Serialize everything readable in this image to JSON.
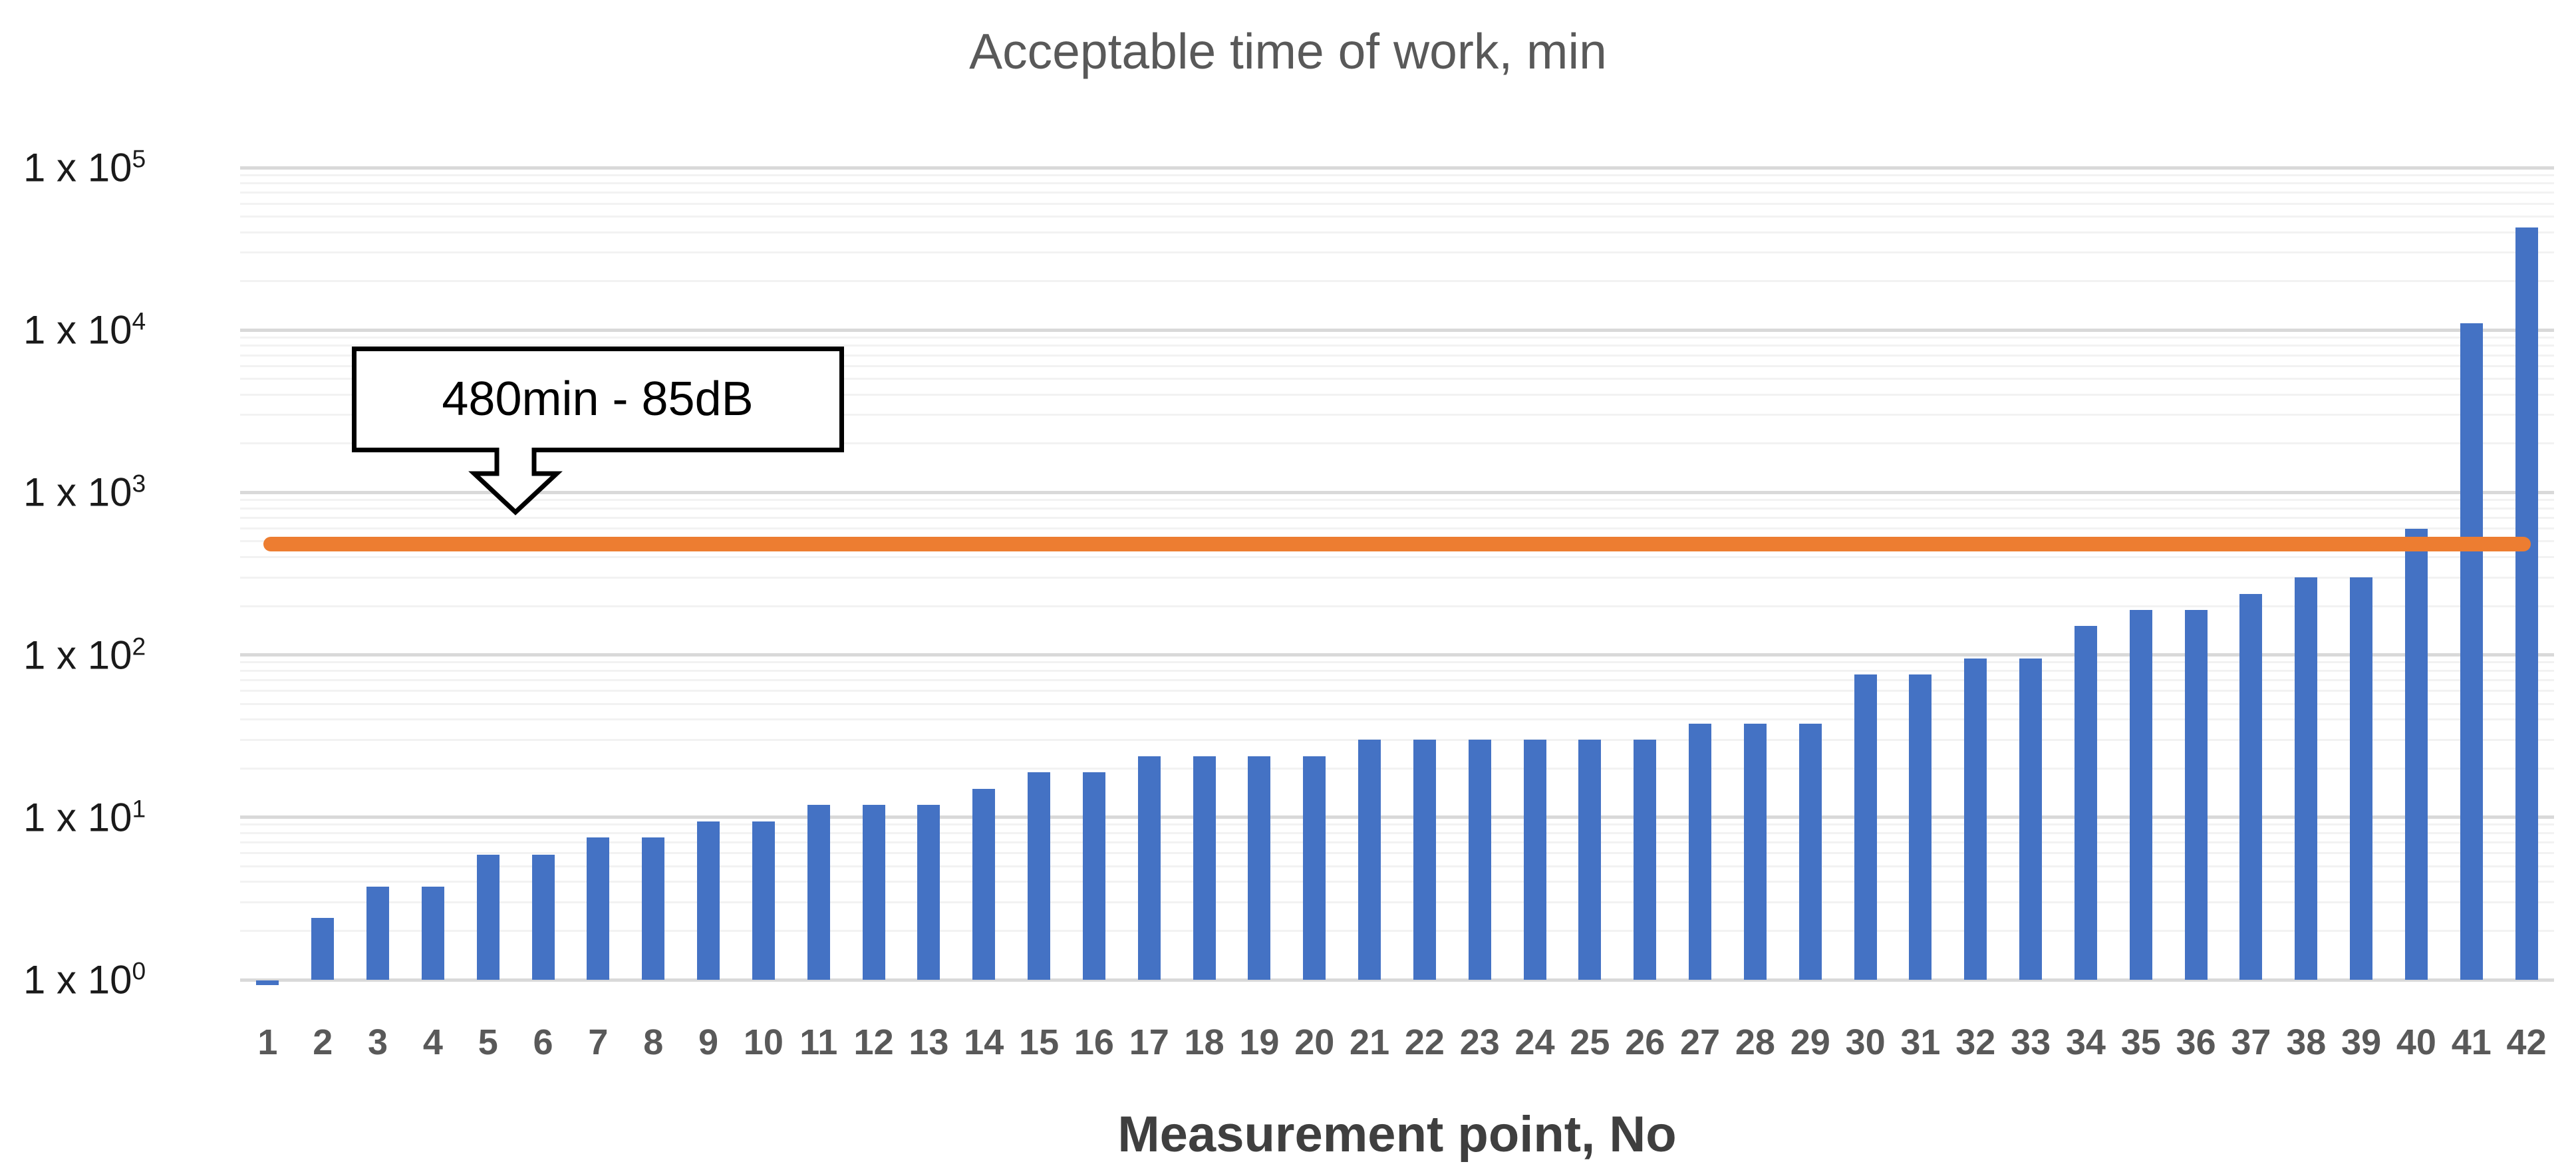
{
  "chart_data": {
    "type": "bar",
    "title": "Acceptable time of work, min",
    "xlabel": "Measurement point, No",
    "ylabel": "",
    "y_scale": "log10",
    "ylim": [
      1,
      100000
    ],
    "y_ticks": [
      {
        "base": "1 x 10",
        "exp": "0",
        "value": 1
      },
      {
        "base": "1 x 10",
        "exp": "1",
        "value": 10
      },
      {
        "base": "1 x 10",
        "exp": "2",
        "value": 100
      },
      {
        "base": "1 x 10",
        "exp": "3",
        "value": 1000
      },
      {
        "base": "1 x 10",
        "exp": "4",
        "value": 10000
      },
      {
        "base": "1 x 10",
        "exp": "5",
        "value": 100000
      }
    ],
    "categories": [
      1,
      2,
      3,
      4,
      5,
      6,
      7,
      8,
      9,
      10,
      11,
      12,
      13,
      14,
      15,
      16,
      17,
      18,
      19,
      20,
      21,
      22,
      23,
      24,
      25,
      26,
      27,
      28,
      29,
      30,
      31,
      32,
      33,
      34,
      35,
      36,
      37,
      38,
      39,
      40,
      41,
      42
    ],
    "series": [
      {
        "name": "Acceptable time of work, min",
        "type": "bar",
        "color": "#4472C4",
        "values": [
          0.94,
          2.4,
          3.75,
          3.75,
          5.9,
          5.9,
          7.5,
          7.5,
          9.4,
          9.4,
          11.9,
          11.9,
          11.9,
          15,
          18.9,
          18.9,
          23.8,
          23.8,
          23.8,
          23.8,
          30,
          30,
          30,
          30,
          30,
          30,
          37.8,
          37.8,
          37.8,
          75.6,
          75.6,
          95,
          95,
          151,
          189,
          189,
          238,
          300,
          300,
          600,
          11000,
          43000
        ]
      },
      {
        "name": "480 min limit at 85 dB",
        "type": "line",
        "color": "#ED7D31",
        "constant_value": 480
      }
    ],
    "annotation": {
      "text": "480min - 85dB"
    },
    "grid": {
      "major_on": true,
      "minor_on": true,
      "minor_steps": [
        2,
        3,
        4,
        5,
        6,
        7,
        8,
        9
      ]
    },
    "legend_position": "none"
  },
  "colors": {
    "bar": "#4472C4",
    "limit_line": "#ED7D31",
    "title_text": "#595959",
    "axis_tick_text": "#595959",
    "y_tick_text": "#1a1a1a",
    "x_title_text": "#3f3f3f",
    "major_grid": "#d9d9d9",
    "minor_grid": "#f2f2f2",
    "annotation_border": "#000000",
    "annotation_fill": "#ffffff"
  }
}
